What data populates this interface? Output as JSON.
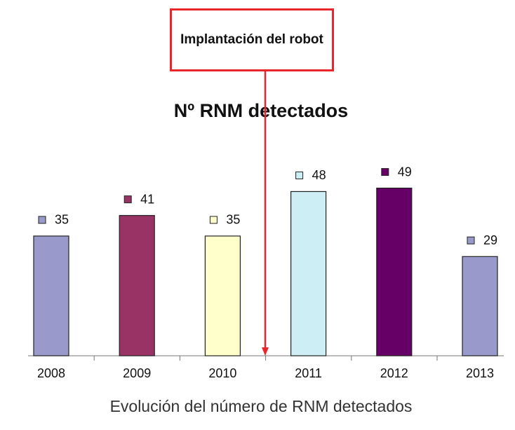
{
  "chart_data": {
    "type": "bar",
    "title": "Nº RNM detectados",
    "annotation": "Implantación del robot",
    "caption": "Evolución del número de RNM detectados",
    "categories": [
      "2008",
      "2009",
      "2010",
      "2011",
      "2012",
      "2013"
    ],
    "values": [
      35,
      41,
      35,
      48,
      49,
      29
    ],
    "colors": [
      "#9999cc",
      "#993366",
      "#ffffcc",
      "#cceef4",
      "#660066",
      "#9999cc"
    ],
    "annotation_color": "#e8262c",
    "ylim": [
      0,
      60
    ]
  }
}
